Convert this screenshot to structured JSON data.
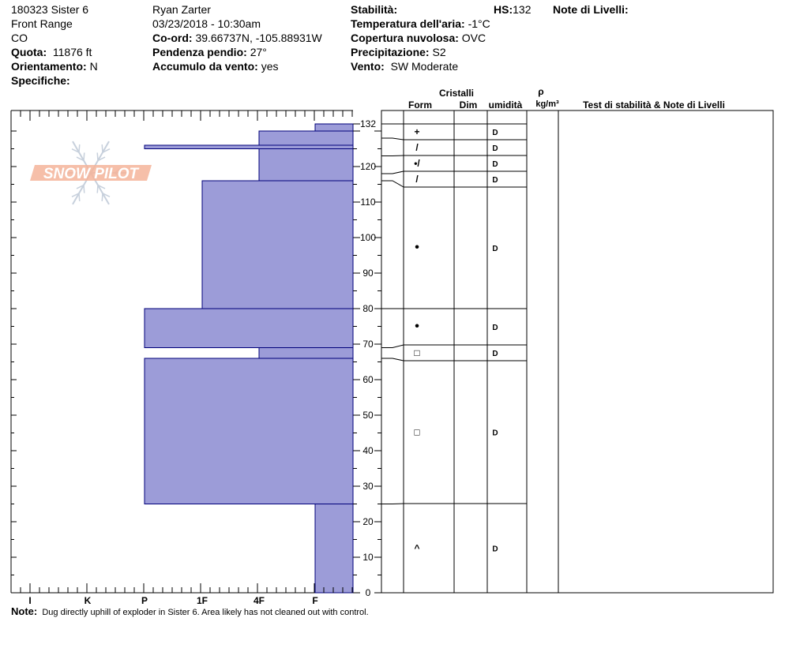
{
  "header": {
    "col1": {
      "pit_name": "180323 Sister 6",
      "range": "Front Range",
      "state": "CO",
      "elevation_label": "Quota:",
      "elevation_value": "11876 ft",
      "aspect_label": "Orientamento:",
      "aspect_value": "N",
      "specifics_label": "Specifiche:"
    },
    "col2": {
      "observer": "Ryan Zarter",
      "datetime": "03/23/2018 - 10:30am",
      "coord_label": "Co-ord:",
      "coord_value": "39.66737N, -105.88931W",
      "slope_label": "Pendenza pendio:",
      "slope_value": "27°",
      "wind_loading_label": "Accumulo da vento:",
      "wind_loading_value": "yes"
    },
    "col3": {
      "stability_label": "Stabilità:",
      "air_temp_label": "Temperatura dell'aria:",
      "air_temp_value": "-1°C",
      "sky_label": "Copertura nuvolosa:",
      "sky_value": "OVC",
      "precip_label": "Precipitazione:",
      "precip_value": "S2",
      "wind_label": "Vento:",
      "wind_value": "SW Moderate"
    },
    "hs_label": "HS:",
    "hs_value": "132",
    "layer_notes_label": "Note di Livelli:"
  },
  "logo": {
    "text": "SNOW PILOT",
    "color": "#f4b49a"
  },
  "table_headers": {
    "crystals": "Cristalli",
    "form": "Form",
    "size": "Dim",
    "moisture": "umidità",
    "rho": "ρ",
    "density_unit": "kg/m³",
    "stability_notes": "Test di stabilità & Note di Livelli"
  },
  "note": {
    "label": "Note:",
    "text": "Dug directly uphill of exploder in Sister 6.  Area likely has not cleaned out with control."
  },
  "colors": {
    "bar_fill": "#9c9cd8",
    "bar_stroke": "#00007a"
  },
  "chart_data": {
    "type": "bar",
    "orientation": "horizontal",
    "y_axis": {
      "label": "",
      "range": [
        0,
        132
      ],
      "ticks": [
        0,
        10,
        20,
        30,
        40,
        50,
        60,
        70,
        80,
        90,
        100,
        110,
        120,
        132
      ]
    },
    "x_axis": {
      "label": "",
      "categories": [
        "I",
        "K",
        "P",
        "1F",
        "4F",
        "F"
      ],
      "scale": [
        6,
        5,
        4,
        3,
        2,
        1
      ]
    },
    "hardness_layers": [
      {
        "top": 132,
        "bottom": 130,
        "hardness": "F"
      },
      {
        "top": 130,
        "bottom": 126,
        "hardness": "4F"
      },
      {
        "top": 126,
        "bottom": 125,
        "hardness": "P"
      },
      {
        "top": 125,
        "bottom": 116,
        "hardness": "4F"
      },
      {
        "top": 116,
        "bottom": 80,
        "hardness": "1F"
      },
      {
        "top": 80,
        "bottom": 69,
        "hardness": "P"
      },
      {
        "top": 69,
        "bottom": 66,
        "hardness": "4F"
      },
      {
        "top": 66,
        "bottom": 25,
        "hardness": "P"
      },
      {
        "top": 25,
        "bottom": 0,
        "hardness": "F"
      }
    ],
    "crystal_layers": [
      {
        "top": 132,
        "bottom": 128,
        "form": "+",
        "moisture": "D"
      },
      {
        "top": 128,
        "bottom": 123,
        "form": "/",
        "moisture": "D"
      },
      {
        "top": 123,
        "bottom": 118,
        "form": "•/",
        "moisture": "D"
      },
      {
        "top": 118,
        "bottom": 116,
        "form": "/",
        "moisture": "D"
      },
      {
        "top": 116,
        "bottom": 80,
        "form": "•",
        "moisture": "D"
      },
      {
        "top": 80,
        "bottom": 69,
        "form": "•",
        "moisture": "D"
      },
      {
        "top": 69,
        "bottom": 66,
        "form": "□",
        "moisture": "D"
      },
      {
        "top": 66,
        "bottom": 25,
        "form": "□",
        "moisture": "D"
      },
      {
        "top": 25,
        "bottom": 0,
        "form": "^",
        "moisture": "D"
      }
    ]
  }
}
